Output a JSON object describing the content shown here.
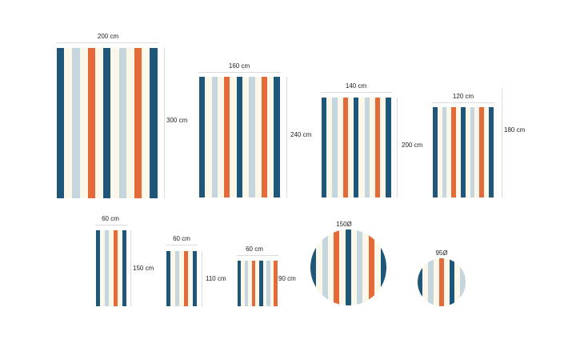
{
  "colors": {
    "navy": "#1e5779",
    "lightblue": "#c5d6de",
    "orange": "#e46a3a",
    "cream": "#fbf8ea",
    "label": "#1f1f1f"
  },
  "stripe_pattern": [
    "navy",
    "cream",
    "lightblue",
    "cream",
    "orange",
    "cream",
    "navy",
    "cream",
    "lightblue",
    "cream",
    "orange",
    "cream",
    "navy"
  ],
  "rugs": [
    {
      "id": "rug-200x300",
      "shape": "rect",
      "width_label": "200 cm",
      "height_label": "300 cm"
    },
    {
      "id": "rug-160x240",
      "shape": "rect",
      "width_label": "160 cm",
      "height_label": "240 cm"
    },
    {
      "id": "rug-140x200",
      "shape": "rect",
      "width_label": "140 cm",
      "height_label": "200 cm"
    },
    {
      "id": "rug-120x180",
      "shape": "rect",
      "width_label": "120 cm",
      "height_label": "180 cm"
    },
    {
      "id": "rug-60x150",
      "shape": "rect",
      "width_label": "60 cm",
      "height_label": "150 cm"
    },
    {
      "id": "rug-60x110",
      "shape": "rect",
      "width_label": "60 cm",
      "height_label": "110 cm"
    },
    {
      "id": "rug-60x90",
      "shape": "rect",
      "width_label": "60 cm",
      "height_label": "90 cm"
    },
    {
      "id": "rug-150-round",
      "shape": "round",
      "diameter_label": "150Ø"
    },
    {
      "id": "rug-95-round",
      "shape": "round",
      "diameter_label": "95Ø"
    }
  ]
}
